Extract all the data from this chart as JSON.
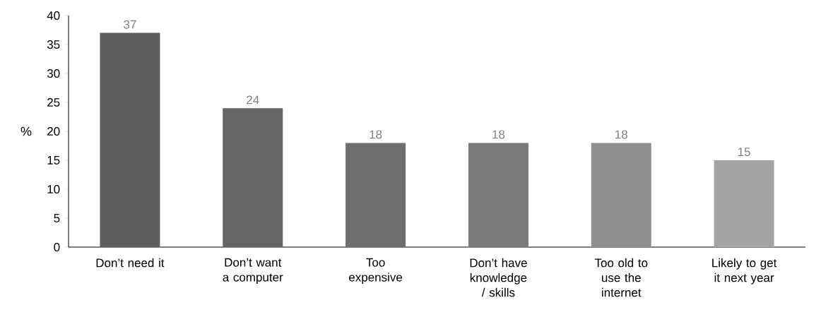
{
  "chart_data": {
    "type": "bar",
    "categories": [
      "Don’t need it",
      "Don’t want a computer",
      "Too expensive",
      "Don’t have knowledge / skills",
      "Too old to use the internet",
      "Likely to get it next year"
    ],
    "values": [
      37,
      24,
      18,
      18,
      18,
      15
    ],
    "colors": [
      "#5e5e5e",
      "#666666",
      "#6e6e6e",
      "#7a7a7a",
      "#909090",
      "#a4a4a4"
    ],
    "ylabel": "%",
    "ylim": [
      0,
      40
    ],
    "yticks": [
      0,
      5,
      10,
      15,
      20,
      25,
      30,
      35,
      40
    ],
    "data_labels": true,
    "grid": false
  }
}
